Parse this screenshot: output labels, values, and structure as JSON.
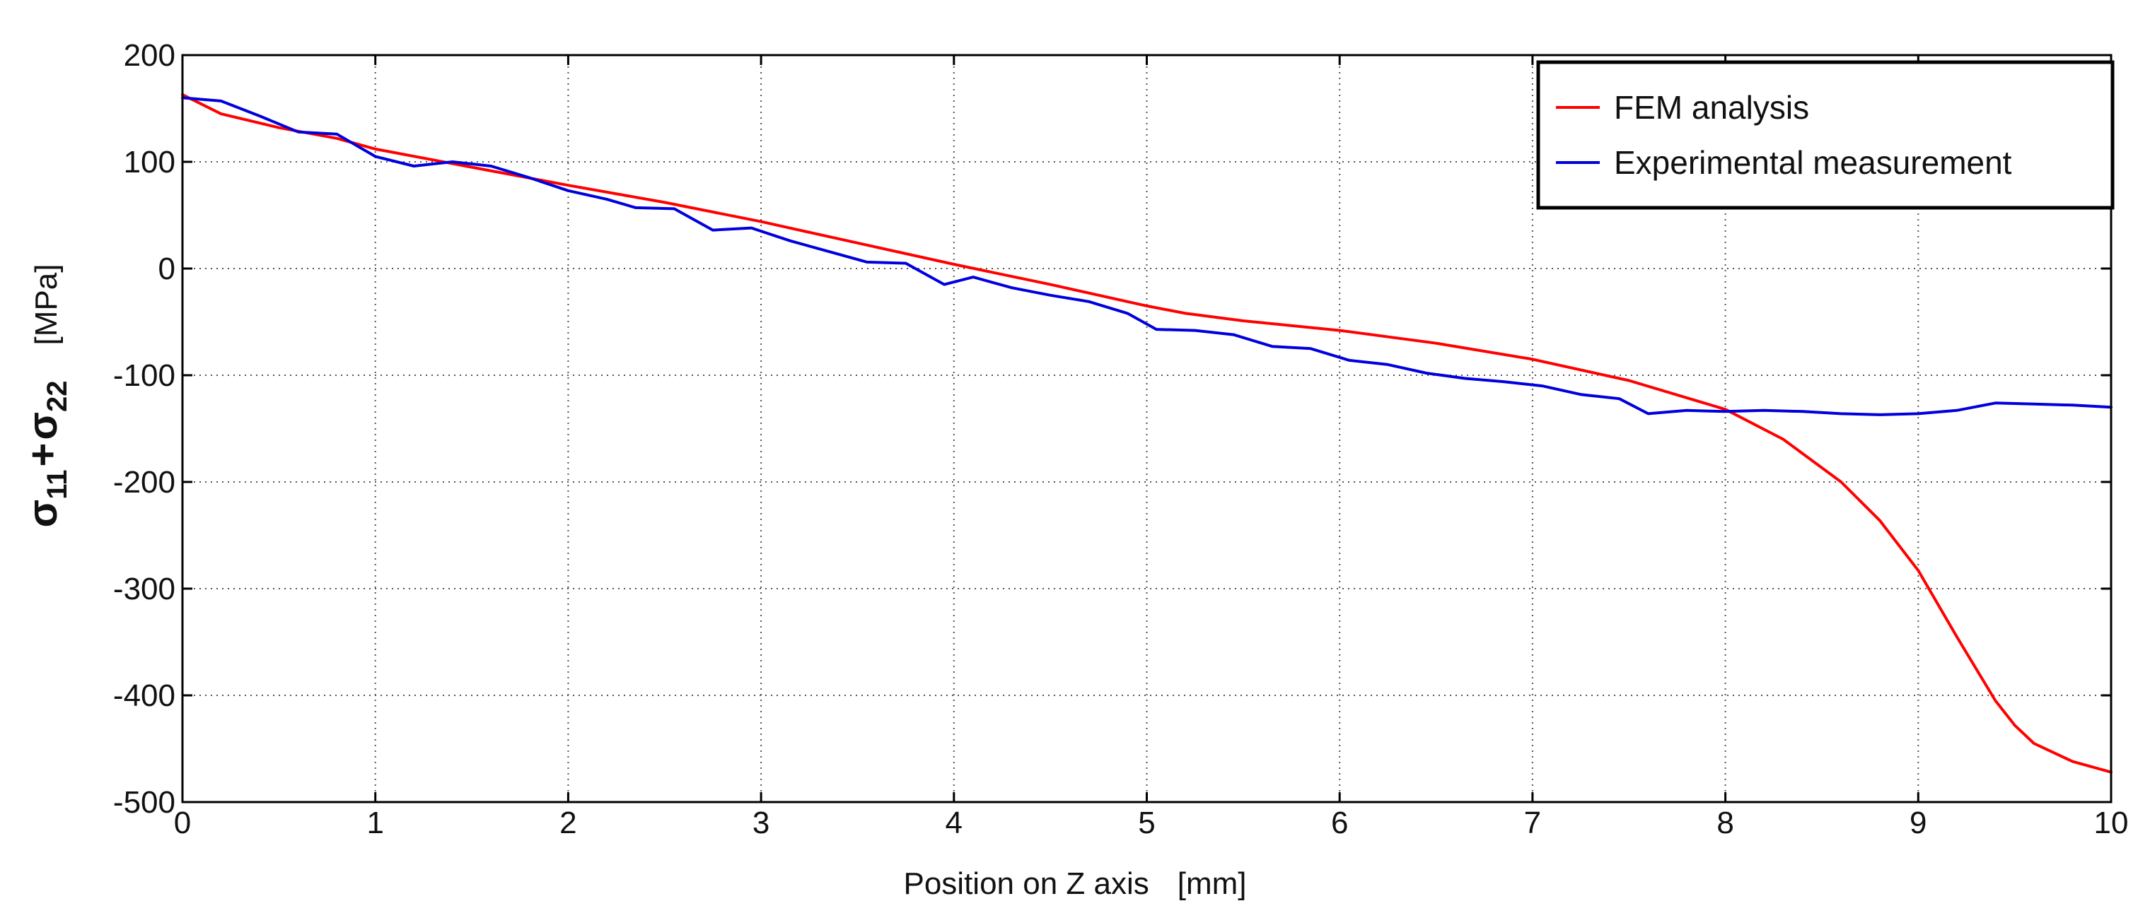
{
  "chart_data": {
    "type": "line",
    "xlabel": "Position on Z axis",
    "xlabel_unit": "[mm]",
    "ylabel": {
      "sym1": "σ",
      "sub1": "11",
      "plus": "+",
      "sym2": "σ",
      "sub2": "22",
      "unit": "[MPa]"
    },
    "xlim": [
      0,
      10
    ],
    "ylim": [
      -500,
      200
    ],
    "x_ticks": [
      0,
      1,
      2,
      3,
      4,
      5,
      6,
      7,
      8,
      9,
      10
    ],
    "y_ticks": [
      200,
      100,
      0,
      -100,
      -200,
      -300,
      -400,
      -500
    ],
    "grid": true,
    "legend_position": "top-right",
    "series": [
      {
        "name": "FEM analysis",
        "color": "#ff0000",
        "x": [
          0,
          0.2,
          0.5,
          0.8,
          1.0,
          1.5,
          2.0,
          2.5,
          3.0,
          3.5,
          4.0,
          4.5,
          5.0,
          5.2,
          5.5,
          6.0,
          6.5,
          7.0,
          7.5,
          8.0,
          8.3,
          8.6,
          8.8,
          9.0,
          9.2,
          9.4,
          9.5,
          9.6,
          9.8,
          10.0
        ],
        "y": [
          163,
          145,
          132,
          122,
          112,
          95,
          78,
          62,
          44,
          24,
          4,
          -15,
          -35,
          -42,
          -49,
          -58,
          -70,
          -85,
          -105,
          -132,
          -160,
          -200,
          -236,
          -283,
          -345,
          -405,
          -428,
          -445,
          -462,
          -472
        ]
      },
      {
        "name": "Experimental measurement",
        "color": "#0000dd",
        "x": [
          0,
          0.2,
          0.4,
          0.6,
          0.8,
          1.0,
          1.2,
          1.4,
          1.6,
          1.8,
          2.0,
          2.2,
          2.35,
          2.55,
          2.75,
          2.95,
          3.15,
          3.35,
          3.55,
          3.75,
          3.95,
          4.1,
          4.3,
          4.5,
          4.7,
          4.9,
          5.05,
          5.25,
          5.45,
          5.65,
          5.85,
          6.05,
          6.25,
          6.45,
          6.65,
          6.85,
          7.05,
          7.25,
          7.45,
          7.6,
          7.8,
          8.0,
          8.2,
          8.4,
          8.6,
          8.8,
          9.0,
          9.2,
          9.4,
          9.6,
          9.8,
          10.0
        ],
        "y": [
          160,
          157,
          143,
          128,
          126,
          105,
          96,
          100,
          96,
          85,
          73,
          65,
          57,
          56,
          36,
          38,
          26,
          16,
          6,
          5,
          -15,
          -8,
          -18,
          -25,
          -31,
          -42,
          -57,
          -58,
          -62,
          -73,
          -75,
          -86,
          -90,
          -98,
          -103,
          -106,
          -110,
          -118,
          -122,
          -136,
          -133,
          -134,
          -133,
          -134,
          -136,
          -137,
          -136,
          -133,
          -126,
          -127,
          -128,
          -130
        ]
      }
    ]
  }
}
